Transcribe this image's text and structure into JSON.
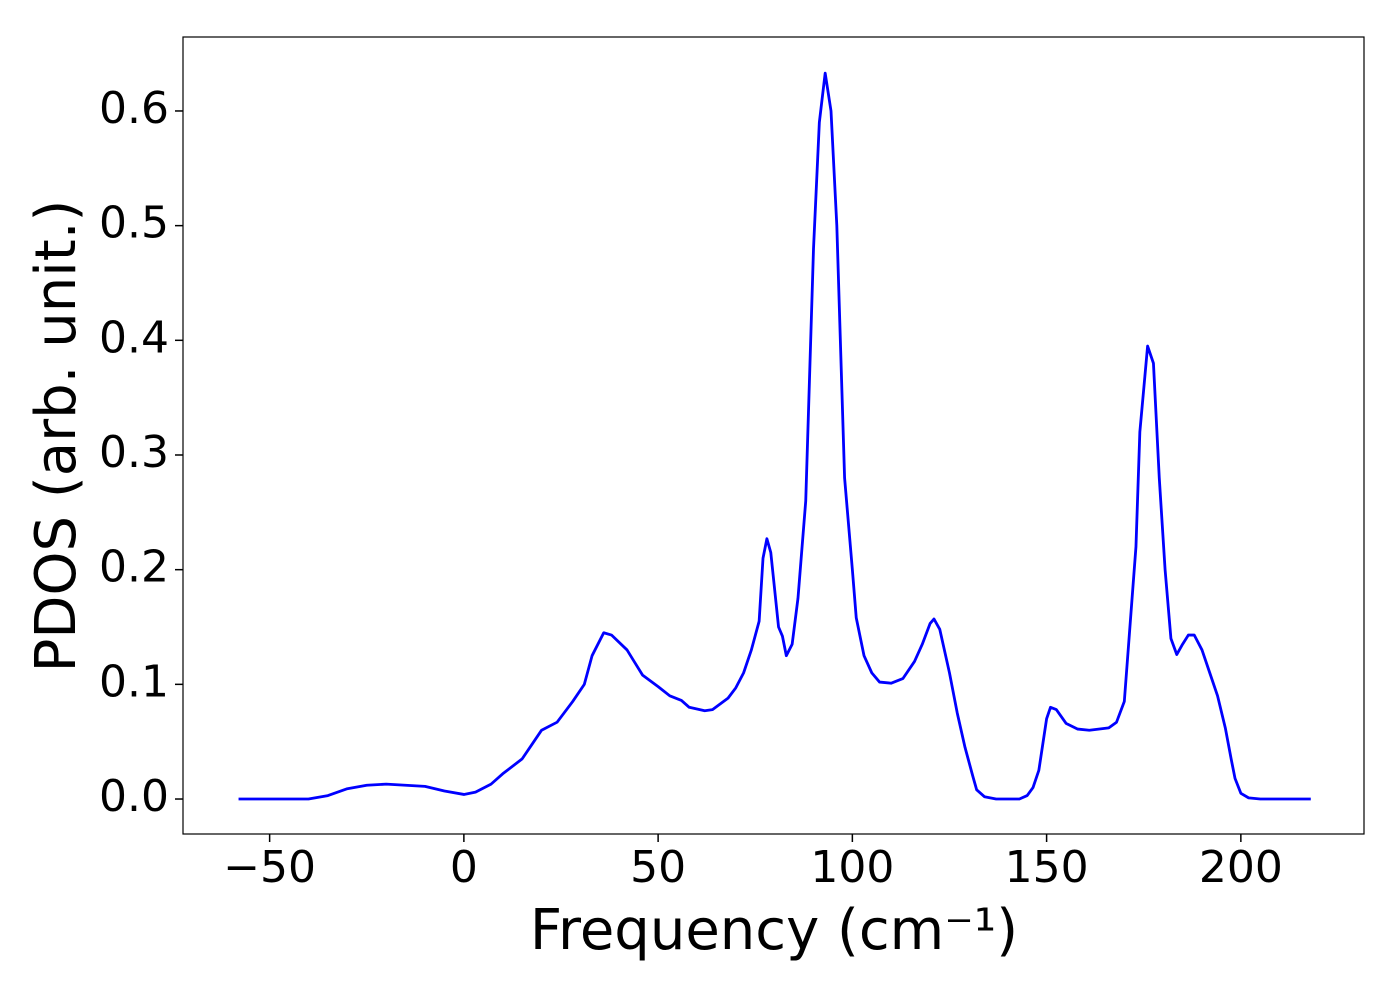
{
  "chart_data": {
    "type": "line",
    "xlabel": "Frequency (cm⁻¹)",
    "ylabel": "PDOS (arb. unit.)",
    "color": "#0000ff",
    "x": [
      -58,
      -40,
      -35,
      -30,
      -25,
      -20,
      -10,
      -5,
      0,
      3,
      7,
      10,
      15,
      18,
      20,
      24,
      28,
      31,
      33,
      36,
      38,
      42,
      46,
      50,
      53,
      56,
      58,
      62,
      64,
      68,
      70,
      72,
      74,
      76,
      77,
      78,
      79,
      81,
      82,
      83,
      84.5,
      86,
      88,
      90,
      91.5,
      93,
      94.5,
      96,
      98,
      100,
      101,
      103,
      105,
      107,
      110,
      113,
      116,
      118,
      120,
      121,
      122.5,
      125,
      127,
      129,
      131,
      132,
      134,
      137,
      143,
      145,
      146.5,
      148,
      150,
      151,
      152.5,
      155,
      158,
      161,
      166,
      168,
      170,
      171,
      173,
      174,
      176,
      177.5,
      179,
      180.5,
      182,
      183.5,
      185,
      186.5,
      188,
      190,
      192,
      194,
      196,
      197.5,
      198.5,
      200,
      202,
      205,
      218
    ],
    "values": [
      0,
      0,
      0.003,
      0.009,
      0.012,
      0.013,
      0.011,
      0.007,
      0.004,
      0.006,
      0.013,
      0.022,
      0.035,
      0.05,
      0.06,
      0.067,
      0.085,
      0.1,
      0.125,
      0.145,
      0.143,
      0.13,
      0.108,
      0.098,
      0.09,
      0.086,
      0.08,
      0.077,
      0.078,
      0.088,
      0.097,
      0.11,
      0.13,
      0.155,
      0.21,
      0.227,
      0.215,
      0.15,
      0.142,
      0.125,
      0.135,
      0.175,
      0.26,
      0.48,
      0.59,
      0.633,
      0.6,
      0.5,
      0.28,
      0.2,
      0.158,
      0.125,
      0.11,
      0.102,
      0.101,
      0.105,
      0.12,
      0.135,
      0.153,
      0.157,
      0.148,
      0.11,
      0.075,
      0.045,
      0.02,
      0.008,
      0.002,
      0,
      0,
      0.003,
      0.01,
      0.025,
      0.07,
      0.08,
      0.078,
      0.066,
      0.061,
      0.06,
      0.062,
      0.067,
      0.085,
      0.13,
      0.22,
      0.32,
      0.395,
      0.38,
      0.28,
      0.2,
      0.14,
      0.126,
      0.135,
      0.143,
      0.143,
      0.13,
      0.11,
      0.09,
      0.062,
      0.035,
      0.018,
      0.005,
      0.001,
      0,
      0
    ],
    "xlim": [
      -72.3,
      231.7
    ],
    "ylim": [
      -0.0305,
      0.6645
    ],
    "xticks": [
      {
        "value": -50,
        "label": "−50"
      },
      0,
      50,
      100,
      150,
      200
    ],
    "yticks": [
      {
        "value": 0,
        "label": "0.0"
      },
      0.1,
      0.2,
      0.3,
      0.4,
      0.5,
      0.6
    ],
    "grid": false
  }
}
